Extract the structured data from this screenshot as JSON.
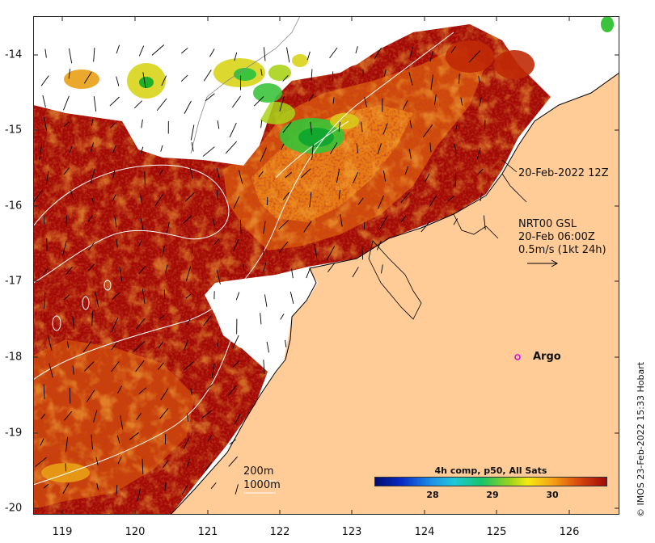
{
  "map": {
    "x_ticks": [
      "119",
      "120",
      "121",
      "122",
      "123",
      "124",
      "125",
      "126"
    ],
    "y_ticks": [
      "-14",
      "-15",
      "-16",
      "-17",
      "-18",
      "-19",
      "-20"
    ],
    "colors": {
      "land": "#ffcb97",
      "cloud": "#ffffff",
      "sst_dark": "#a30a05",
      "sst_mid": "#d13a06",
      "sst_warm": "#e8760e",
      "sst_yellow": "#d8d41a",
      "sst_green": "#3cc33c",
      "coast": "#000000",
      "contour": "#ffffff",
      "argo": "#e000e0"
    }
  },
  "annotations": {
    "track_date": "20-Feb-2022 12Z",
    "current_product": "NRT00 GSL",
    "current_time": "20-Feb 06:00Z",
    "current_scale": "0.5m/s (1kt 24h)",
    "argo_label": "Argo",
    "depth_200": "200m",
    "depth_1000": "1000m",
    "copyright": "© IMOS 23-Feb-2022 15:33 Hobart"
  },
  "colorbar": {
    "title": "4h comp, p50, All Sats",
    "ticks": [
      "28",
      "29",
      "30"
    ]
  }
}
